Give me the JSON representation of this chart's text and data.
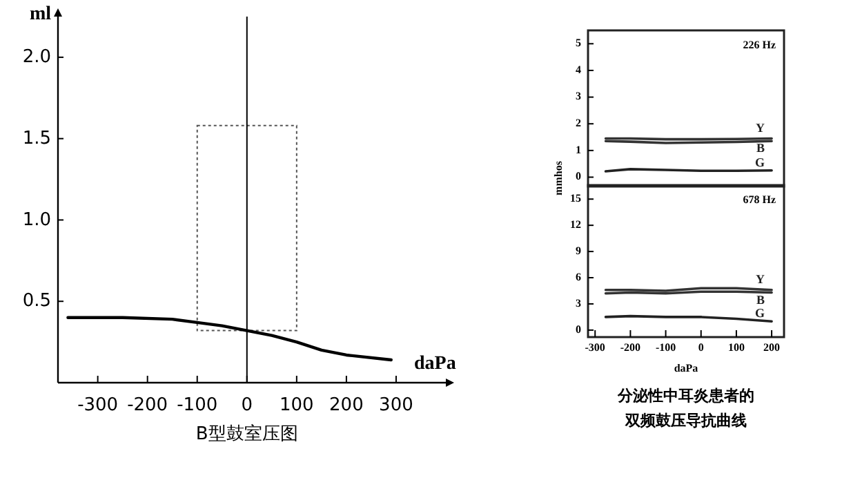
{
  "chart_data": [
    {
      "type": "line",
      "title": "B型鼓室压图",
      "xlabel": "daPa",
      "ylabel": "ml",
      "xlim": [
        -380,
        400
      ],
      "ylim": [
        0,
        2.25
      ],
      "xticks": [
        -300,
        -200,
        -100,
        0,
        100,
        200,
        300
      ],
      "yticks": [
        0.5,
        {
          "value": 1,
          "label": "1.0"
        },
        1.5,
        {
          "value": 2,
          "label": "2.0"
        }
      ],
      "x": [
        -360,
        -250,
        -150,
        -100,
        -50,
        0,
        50,
        100,
        150,
        200,
        290
      ],
      "series": [
        {
          "color": "#000000",
          "values": [
            0.4,
            0.4,
            0.39,
            0.37,
            0.35,
            0.32,
            0.29,
            0.25,
            0.2,
            0.17,
            0.14
          ]
        }
      ],
      "ref_lines": [
        {
          "axis": "x",
          "value": 0,
          "color": "#000000"
        }
      ]
    },
    {
      "type": "line",
      "annotations": [
        "226 Hz"
      ],
      "ylabel": "mmhos",
      "xlim": [
        -320,
        235
      ],
      "ylim": [
        -0.35,
        5.5
      ],
      "yticks": [
        0,
        1,
        2,
        3,
        4,
        5
      ],
      "tick_labels": "y",
      "x": [
        -270,
        -200,
        -100,
        0,
        100,
        200
      ],
      "series": [
        {
          "name": "Y",
          "color": "#333333",
          "values": [
            1.45,
            1.45,
            1.42,
            1.42,
            1.43,
            1.45
          ]
        },
        {
          "name": "B",
          "color": "#333333",
          "values": [
            1.35,
            1.33,
            1.28,
            1.3,
            1.32,
            1.35
          ]
        },
        {
          "name": "G",
          "color": "#222222",
          "values": [
            0.22,
            0.3,
            0.27,
            0.24,
            0.24,
            0.25
          ]
        }
      ]
    },
    {
      "type": "line",
      "annotations": [
        "678 Hz",
        "分泌性中耳炎患者的",
        "双频鼓压导抗曲线"
      ],
      "xlabel": "daPa",
      "xlim": [
        -320,
        235
      ],
      "ylim": [
        -0.8,
        16.6
      ],
      "xticks": [
        -300,
        -200,
        -100,
        0,
        100,
        200
      ],
      "yticks": [
        0,
        3,
        6,
        9,
        12,
        15
      ],
      "x": [
        -270,
        -200,
        -100,
        0,
        100,
        200
      ],
      "series": [
        {
          "name": "Y",
          "color": "#333333",
          "values": [
            4.6,
            4.6,
            4.5,
            4.8,
            4.8,
            4.6
          ]
        },
        {
          "name": "B",
          "color": "#333333",
          "values": [
            4.2,
            4.3,
            4.2,
            4.4,
            4.4,
            4.3
          ]
        },
        {
          "name": "G",
          "color": "#222222",
          "values": [
            1.5,
            1.6,
            1.5,
            1.5,
            1.3,
            1.0
          ]
        }
      ]
    }
  ]
}
